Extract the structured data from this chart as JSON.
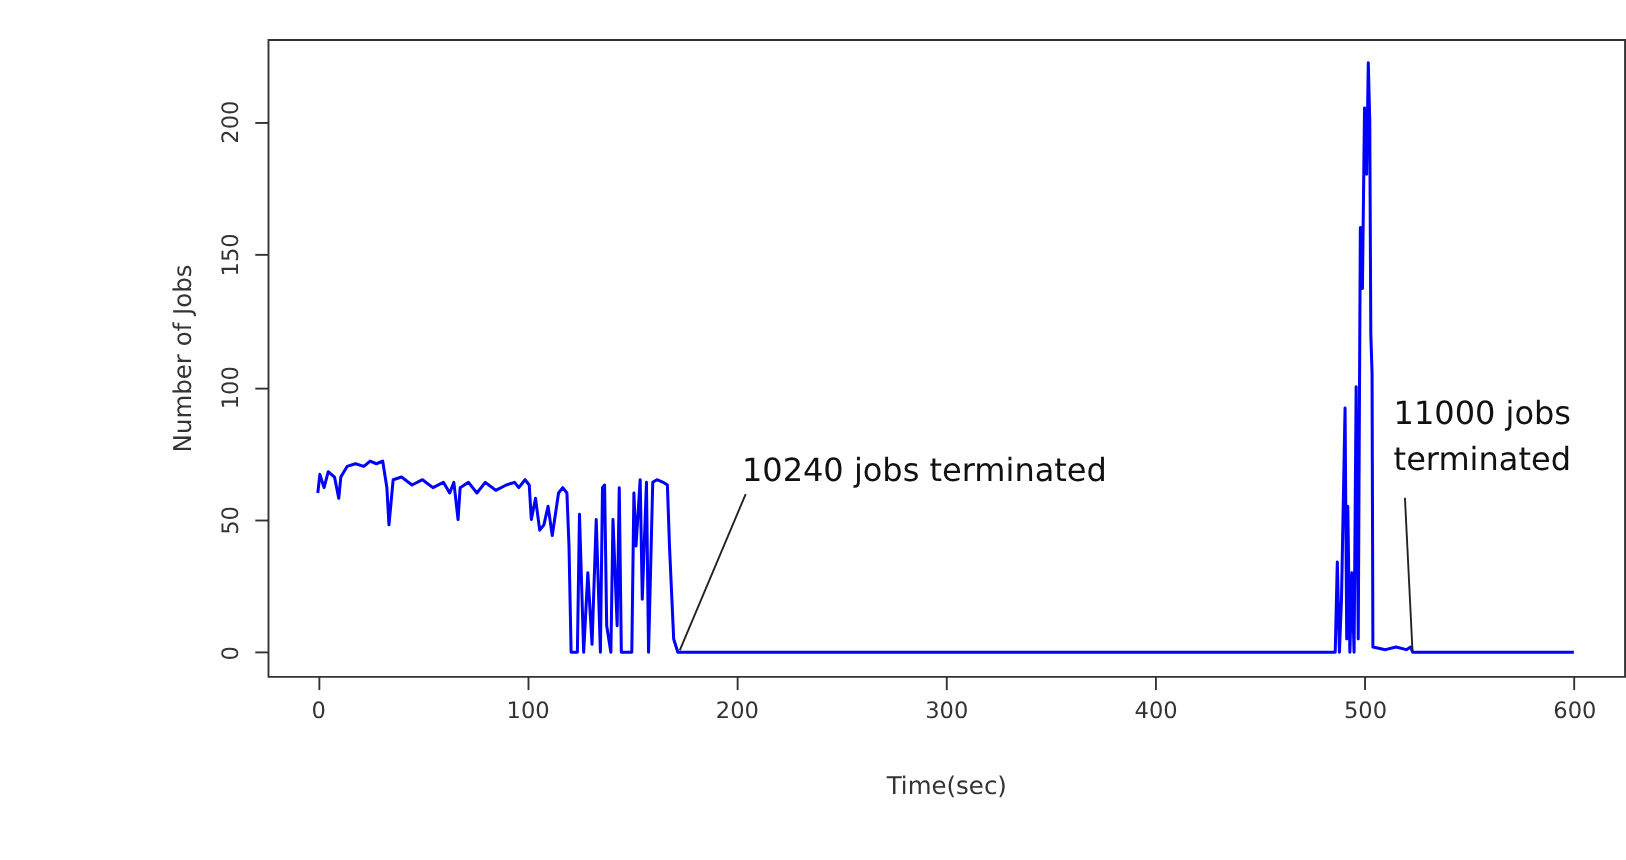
{
  "chart_data": {
    "type": "line",
    "xlabel": "Time(sec)",
    "ylabel": "Number of Jobs",
    "xlim": [
      -24,
      624
    ],
    "ylim": [
      -8.9,
      230.9
    ],
    "xticks": [
      0,
      100,
      200,
      300,
      400,
      500,
      600
    ],
    "yticks": [
      0,
      50,
      100,
      150,
      200
    ],
    "grid": false,
    "marker": "none",
    "line_style": "solid",
    "series": [
      {
        "color": "#0000ff",
        "x": [
          0,
          1,
          3,
          5,
          8,
          10,
          11,
          14,
          18,
          22,
          25,
          28,
          31,
          33,
          34,
          36,
          40,
          45,
          50,
          55,
          60,
          63,
          65,
          67,
          68,
          72,
          76,
          80,
          85,
          90,
          94,
          96,
          99,
          101,
          102,
          104,
          106,
          108,
          110,
          112,
          115,
          117,
          119,
          120,
          121,
          124,
          125,
          127,
          129,
          131,
          133,
          135,
          136,
          137,
          138,
          140,
          141,
          143,
          144,
          145,
          150,
          151,
          152,
          154,
          155,
          157,
          158,
          160,
          162,
          165,
          167,
          168,
          170,
          172,
          480,
          486,
          487,
          488,
          489,
          490.7,
          491.5,
          492,
          493,
          494,
          495,
          496,
          497,
          498,
          499,
          500,
          501,
          501.8,
          502.5,
          503,
          503.6,
          504,
          510,
          515,
          520,
          522,
          523,
          600
        ],
        "values": [
          60,
          67,
          62,
          68,
          66,
          58,
          66,
          70,
          71,
          70,
          72,
          71,
          72,
          62,
          48,
          65,
          66,
          63,
          65,
          62,
          64,
          60,
          64,
          50,
          62,
          64,
          60,
          64,
          61,
          63,
          64,
          62,
          65,
          63,
          50,
          58,
          46,
          48,
          55,
          44,
          60,
          62,
          60,
          40,
          0,
          0,
          52,
          0,
          30,
          3,
          50,
          0,
          62,
          63,
          10,
          0,
          50,
          10,
          62,
          0,
          0,
          60,
          40,
          65,
          20,
          64,
          0,
          64,
          65,
          64,
          63,
          40,
          5,
          0,
          0,
          0,
          34,
          0,
          20,
          92,
          5,
          55,
          0,
          30,
          0,
          100,
          5,
          160,
          137,
          205,
          180,
          222,
          200,
          120,
          105,
          2,
          1,
          2,
          1,
          2,
          0,
          0
        ]
      }
    ],
    "annotations": [
      {
        "text": "10240 jobs terminated",
        "x": 172,
        "y": 0
      },
      {
        "text": "11000 jobs\nterminated",
        "x": 522,
        "y": 0
      }
    ]
  }
}
